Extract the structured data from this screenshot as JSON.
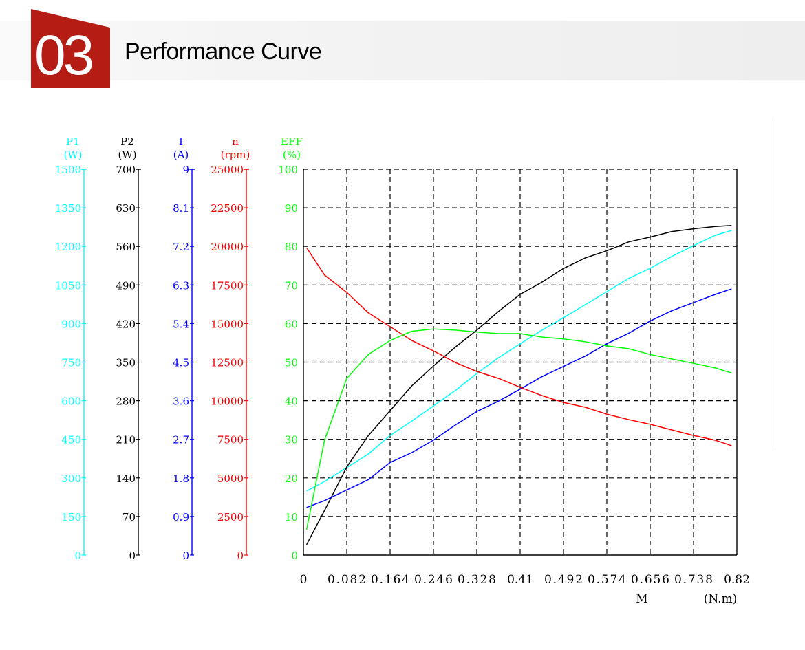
{
  "header": {
    "number": "03",
    "title": "Performance Curve"
  },
  "chart_data": {
    "type": "line",
    "xlabel": "M",
    "xunit": "(N.m)",
    "xlim": [
      0,
      0.82
    ],
    "xticks": [
      "0",
      "0.082",
      "0.164",
      "0.246",
      "0.328",
      "0.41",
      "0.492",
      "0.574",
      "0.656",
      "0.738",
      "0.82"
    ],
    "grid": true,
    "x": [
      0.006,
      0.04,
      0.082,
      0.123,
      0.164,
      0.205,
      0.246,
      0.287,
      0.328,
      0.369,
      0.41,
      0.451,
      0.492,
      0.533,
      0.574,
      0.615,
      0.656,
      0.697,
      0.738,
      0.779,
      0.81
    ],
    "axes": [
      {
        "key": "P1",
        "name": "P1",
        "unit": "(W)",
        "color": "#00ffff",
        "range": [
          0,
          1500
        ],
        "ticks": [
          "0",
          "150",
          "300",
          "450",
          "600",
          "750",
          "900",
          "1050",
          "1200",
          "1350",
          "1500"
        ]
      },
      {
        "key": "P2",
        "name": "P2",
        "unit": "(W)",
        "color": "#000000",
        "range": [
          0,
          700
        ],
        "ticks": [
          "0",
          "70",
          "140",
          "210",
          "280",
          "350",
          "420",
          "490",
          "560",
          "630",
          "700"
        ]
      },
      {
        "key": "I",
        "name": "I",
        "unit": "(A)",
        "color": "#0000ff",
        "range": [
          0,
          9
        ],
        "ticks": [
          "0",
          "0.9",
          "1.8",
          "2.7",
          "3.6",
          "4.5",
          "5.4",
          "6.3",
          "7.2",
          "8.1",
          "9"
        ]
      },
      {
        "key": "n",
        "name": "n",
        "unit": "(rpm)",
        "color": "#ff0000",
        "range": [
          0,
          25000
        ],
        "ticks": [
          "0",
          "2500",
          "5000",
          "7500",
          "10000",
          "12500",
          "15000",
          "17500",
          "20000",
          "22500",
          "25000"
        ]
      },
      {
        "key": "EFF",
        "name": "EFF",
        "unit": "(%)",
        "color": "#00ff00",
        "range": [
          0,
          100
        ],
        "ticks": [
          "0",
          "10",
          "20",
          "30",
          "40",
          "50",
          "60",
          "70",
          "80",
          "90",
          "100"
        ]
      }
    ],
    "series": [
      {
        "name": "P1",
        "axis": "P1",
        "color": "#00ffff",
        "values": [
          249,
          286,
          340,
          393,
          465,
          521,
          580,
          639,
          706,
          767,
          821,
          874,
          923,
          973,
          1024,
          1075,
          1115,
          1161,
          1203,
          1243,
          1262
        ]
      },
      {
        "name": "P2",
        "axis": "P2",
        "color": "#000000",
        "values": [
          19,
          81,
          160,
          217,
          262,
          307,
          343,
          377,
          408,
          442,
          473,
          495,
          520,
          539,
          552,
          568,
          577,
          587,
          592,
          596,
          598
        ]
      },
      {
        "name": "I",
        "axis": "I",
        "color": "#0000ff",
        "values": [
          1.11,
          1.27,
          1.52,
          1.76,
          2.16,
          2.39,
          2.68,
          3.03,
          3.35,
          3.59,
          3.87,
          4.16,
          4.4,
          4.64,
          4.93,
          5.17,
          5.46,
          5.7,
          5.89,
          6.08,
          6.21
        ]
      },
      {
        "name": "n",
        "axis": "n",
        "color": "#ff0000",
        "values": [
          19920,
          18140,
          17020,
          15690,
          14800,
          13900,
          13230,
          12480,
          11900,
          11450,
          10870,
          10340,
          9890,
          9580,
          9130,
          8780,
          8470,
          8110,
          7750,
          7440,
          7090
        ]
      },
      {
        "name": "EFF",
        "axis": "EFF",
        "color": "#00ff00",
        "values": [
          6.6,
          29.8,
          45.8,
          52,
          55.6,
          58,
          58.6,
          58.3,
          57.8,
          57.4,
          57.4,
          56.5,
          56,
          55.3,
          54.2,
          53.5,
          52,
          50.8,
          49.7,
          48.5,
          47.2
        ]
      }
    ]
  }
}
